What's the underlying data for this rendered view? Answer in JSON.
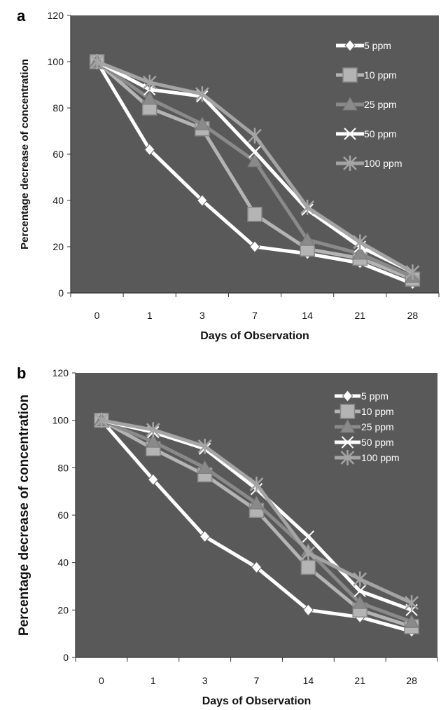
{
  "chart_data": [
    {
      "panel": "a",
      "type": "line",
      "categories": [
        "0",
        "1",
        "3",
        "7",
        "14",
        "21",
        "28"
      ],
      "xlabel": "Days of Observation",
      "ylabel": "Percentage decrease of concentration",
      "ylim": [
        0,
        120
      ],
      "yticks": [
        "0",
        "20",
        "40",
        "60",
        "80",
        "100",
        "120"
      ],
      "grid": false,
      "legend_position": "top-right",
      "series": [
        {
          "name": "5 ppm",
          "values": [
            100,
            62,
            40,
            20,
            17,
            13,
            4
          ],
          "color": "#ffffff",
          "marker": "diamond"
        },
        {
          "name": "10 ppm",
          "values": [
            100,
            80,
            71,
            34,
            19,
            15,
            6
          ],
          "color": "#b4b4b4",
          "marker": "square"
        },
        {
          "name": "25 ppm",
          "values": [
            100,
            84,
            73,
            57,
            23,
            17,
            7
          ],
          "color": "#8a8a8a",
          "marker": "triangle"
        },
        {
          "name": "50 ppm",
          "values": [
            100,
            88,
            85,
            61,
            36,
            20,
            9
          ],
          "color": "#ffffff",
          "marker": "x"
        },
        {
          "name": "100 ppm",
          "values": [
            100,
            91,
            86,
            68,
            37,
            22,
            9
          ],
          "color": "#a4a4a4",
          "marker": "star"
        }
      ]
    },
    {
      "panel": "b",
      "type": "line",
      "categories": [
        "0",
        "1",
        "3",
        "7",
        "14",
        "21",
        "28"
      ],
      "xlabel": "Days of Observation",
      "ylabel": "Percentage decrease of concentration",
      "ylim": [
        0,
        120
      ],
      "yticks": [
        "0",
        "20",
        "40",
        "60",
        "80",
        "100",
        "120"
      ],
      "grid": false,
      "legend_position": "top-right",
      "series": [
        {
          "name": "5 ppm",
          "values": [
            100,
            75,
            51,
            38,
            20,
            17,
            11
          ],
          "color": "#ffffff",
          "marker": "diamond"
        },
        {
          "name": "10 ppm",
          "values": [
            100,
            88,
            77,
            62,
            38,
            20,
            13
          ],
          "color": "#b4b4b4",
          "marker": "square"
        },
        {
          "name": "25 ppm",
          "values": [
            100,
            91,
            80,
            65,
            45,
            23,
            15
          ],
          "color": "#8a8a8a",
          "marker": "triangle"
        },
        {
          "name": "50 ppm",
          "values": [
            100,
            95,
            88,
            71,
            51,
            28,
            20
          ],
          "color": "#ffffff",
          "marker": "x"
        },
        {
          "name": "100 ppm",
          "values": [
            100,
            96,
            89,
            73,
            44,
            33,
            23
          ],
          "color": "#a4a4a4",
          "marker": "star"
        }
      ]
    }
  ]
}
